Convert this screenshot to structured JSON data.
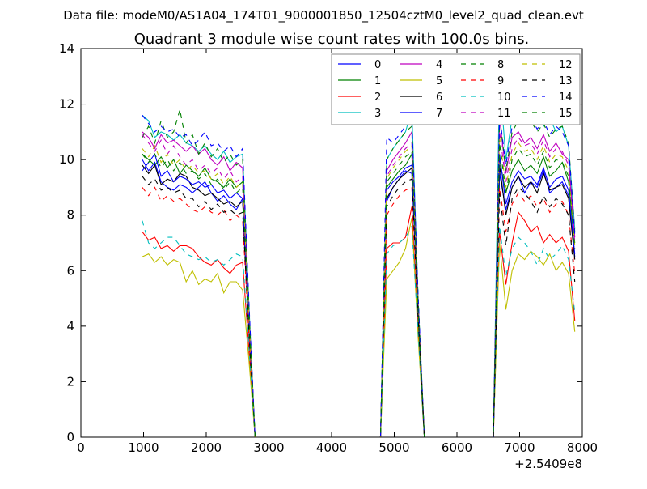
{
  "suptitle": "Data file: modeM0/AS1A04_174T01_9000001850_12504cztM0_level2_quad_clean.evt",
  "chart_data": {
    "type": "line",
    "title": "Quadrant 3 module wise count rates with 100.0s bins.",
    "xlabel": "",
    "ylabel": "",
    "x_offset_label": "+2.5409e8",
    "xlim": [
      0,
      8000
    ],
    "ylim": [
      0,
      14
    ],
    "x_ticks": [
      0,
      1000,
      2000,
      3000,
      4000,
      5000,
      6000,
      7000,
      8000
    ],
    "y_ticks": [
      0,
      2,
      4,
      6,
      8,
      10,
      12,
      14
    ],
    "grid": false,
    "legend": "top-right",
    "x": [
      980,
      1080,
      1180,
      1280,
      1380,
      1480,
      1580,
      1680,
      1780,
      1880,
      1980,
      2080,
      2180,
      2280,
      2380,
      2480,
      2580,
      2680,
      2780,
      2880,
      2980,
      3080,
      3180,
      3280,
      3380,
      3480,
      3580,
      3680,
      3780,
      3880,
      3980,
      4080,
      4180,
      4280,
      4380,
      4480,
      4580,
      4680,
      4780,
      4880,
      4980,
      5080,
      5180,
      5280,
      5380,
      5480,
      5580,
      5680,
      5780,
      5880,
      5980,
      6080,
      6180,
      6280,
      6380,
      6480,
      6580,
      6680,
      6780,
      6880,
      6980,
      7080,
      7180,
      7280,
      7380,
      7480,
      7580,
      7680,
      7780,
      7880
    ],
    "series": [
      {
        "name": "0",
        "color": "#0000ff",
        "dash": "solid",
        "values": [
          10.0,
          9.6,
          9.9,
          9.2,
          9.0,
          8.9,
          9.1,
          9.0,
          8.8,
          9.0,
          9.2,
          8.8,
          8.5,
          8.7,
          8.4,
          8.2,
          8.6,
          4.0,
          0,
          0,
          0,
          0,
          0,
          0,
          0,
          0,
          0,
          0,
          0,
          0,
          0,
          0,
          0,
          0,
          0,
          0,
          0,
          0,
          0,
          8.5,
          9.0,
          9.3,
          9.6,
          9.5,
          4.5,
          0,
          0,
          0,
          0,
          0,
          0,
          0,
          0,
          0,
          0,
          0,
          0,
          9.5,
          8.2,
          9.0,
          9.4,
          8.8,
          9.2,
          9.0,
          9.6,
          8.8,
          9.0,
          9.2,
          8.7,
          6.5
        ]
      },
      {
        "name": "1",
        "color": "#008000",
        "dash": "solid",
        "values": [
          10.2,
          10.0,
          9.8,
          10.1,
          9.7,
          10.0,
          9.5,
          9.8,
          9.6,
          9.4,
          9.7,
          9.3,
          9.2,
          9.0,
          9.3,
          9.0,
          9.2,
          4.2,
          0,
          0,
          0,
          0,
          0,
          0,
          0,
          0,
          0,
          0,
          0,
          0,
          0,
          0,
          0,
          0,
          0,
          0,
          0,
          0,
          0,
          9.0,
          9.3,
          9.6,
          9.8,
          10.2,
          4.8,
          0,
          0,
          0,
          0,
          0,
          0,
          0,
          0,
          0,
          0,
          0,
          0,
          10.0,
          8.8,
          9.6,
          10.0,
          9.6,
          9.8,
          9.5,
          10.1,
          9.4,
          9.6,
          9.9,
          9.2,
          7.0
        ]
      },
      {
        "name": "2",
        "color": "#ff0000",
        "dash": "solid",
        "values": [
          7.4,
          7.1,
          7.2,
          6.8,
          6.9,
          6.7,
          6.9,
          6.9,
          6.8,
          6.5,
          6.3,
          6.2,
          6.4,
          6.1,
          5.9,
          6.2,
          6.3,
          3.2,
          0,
          0,
          0,
          0,
          0,
          0,
          0,
          0,
          0,
          0,
          0,
          0,
          0,
          0,
          0,
          0,
          0,
          0,
          0,
          0,
          0,
          6.8,
          7.0,
          7.0,
          7.2,
          8.3,
          3.8,
          0,
          0,
          0,
          0,
          0,
          0,
          0,
          0,
          0,
          0,
          0,
          0,
          7.4,
          5.5,
          7.0,
          8.1,
          7.8,
          7.4,
          7.6,
          7.0,
          7.3,
          7.0,
          7.2,
          6.7,
          4.2
        ]
      },
      {
        "name": "3",
        "color": "#00bfbf",
        "dash": "solid",
        "values": [
          11.6,
          11.4,
          10.8,
          11.0,
          10.9,
          10.7,
          10.9,
          10.6,
          10.5,
          10.3,
          10.5,
          10.2,
          10.0,
          10.3,
          9.9,
          10.1,
          10.2,
          4.8,
          0,
          0,
          0,
          0,
          0,
          0,
          0,
          0,
          0,
          0,
          0,
          0,
          0,
          0,
          0,
          0,
          0,
          0,
          0,
          0,
          0,
          10.0,
          10.4,
          10.7,
          11.0,
          11.8,
          5.0,
          0,
          0,
          0,
          0,
          0,
          0,
          0,
          0,
          0,
          0,
          0,
          0,
          13.0,
          10.0,
          11.5,
          12.0,
          11.6,
          11.4,
          11.8,
          11.2,
          11.5,
          11.0,
          11.2,
          10.5,
          7.5
        ]
      },
      {
        "name": "4",
        "color": "#bf00bf",
        "dash": "solid",
        "values": [
          11.0,
          10.8,
          10.4,
          10.9,
          10.6,
          10.7,
          10.5,
          10.3,
          10.5,
          10.2,
          10.4,
          10.0,
          9.8,
          10.1,
          9.6,
          9.9,
          9.7,
          4.6,
          0,
          0,
          0,
          0,
          0,
          0,
          0,
          0,
          0,
          0,
          0,
          0,
          0,
          0,
          0,
          0,
          0,
          0,
          0,
          0,
          0,
          9.6,
          10.0,
          10.3,
          10.6,
          11.0,
          4.9,
          0,
          0,
          0,
          0,
          0,
          0,
          0,
          0,
          0,
          0,
          0,
          0,
          11.5,
          9.5,
          10.8,
          11.0,
          10.6,
          10.8,
          10.4,
          10.9,
          10.3,
          10.6,
          10.2,
          10.0,
          7.2
        ]
      },
      {
        "name": "5",
        "color": "#bfbf00",
        "dash": "solid",
        "values": [
          6.5,
          6.6,
          6.3,
          6.5,
          6.2,
          6.4,
          6.3,
          5.6,
          6.0,
          5.5,
          5.7,
          5.6,
          5.9,
          5.2,
          5.6,
          5.6,
          5.3,
          2.8,
          0,
          0,
          0,
          0,
          0,
          0,
          0,
          0,
          0,
          0,
          0,
          0,
          0,
          0,
          0,
          0,
          0,
          0,
          0,
          0,
          0,
          5.7,
          6.0,
          6.3,
          6.8,
          7.9,
          3.6,
          0,
          0,
          0,
          0,
          0,
          0,
          0,
          0,
          0,
          0,
          0,
          0,
          7.0,
          4.6,
          6.0,
          6.6,
          6.4,
          6.7,
          6.5,
          6.2,
          6.6,
          6.0,
          6.3,
          5.9,
          3.8
        ]
      },
      {
        "name": "6",
        "color": "#000000",
        "dash": "solid",
        "values": [
          9.8,
          9.5,
          9.8,
          9.1,
          9.3,
          9.2,
          9.5,
          9.4,
          9.0,
          8.9,
          8.7,
          8.8,
          8.6,
          8.4,
          8.5,
          8.3,
          8.5,
          3.9,
          0,
          0,
          0,
          0,
          0,
          0,
          0,
          0,
          0,
          0,
          0,
          0,
          0,
          0,
          0,
          0,
          0,
          0,
          0,
          0,
          0,
          8.6,
          9.0,
          9.3,
          9.5,
          9.7,
          4.4,
          0,
          0,
          0,
          0,
          0,
          0,
          0,
          0,
          0,
          0,
          0,
          0,
          9.8,
          8.0,
          9.0,
          9.4,
          9.0,
          9.2,
          8.8,
          9.5,
          8.9,
          9.0,
          9.1,
          8.6,
          6.4
        ]
      },
      {
        "name": "7",
        "color": "#0000ff",
        "dash": "solid",
        "values": [
          9.6,
          9.9,
          10.2,
          9.4,
          9.6,
          9.2,
          9.4,
          9.3,
          9.1,
          9.2,
          9.0,
          9.1,
          8.8,
          8.9,
          8.6,
          8.8,
          8.6,
          4.0,
          0,
          0,
          0,
          0,
          0,
          0,
          0,
          0,
          0,
          0,
          0,
          0,
          0,
          0,
          0,
          0,
          0,
          0,
          0,
          0,
          0,
          8.9,
          9.2,
          9.4,
          9.7,
          9.8,
          4.5,
          0,
          0,
          0,
          0,
          0,
          0,
          0,
          0,
          0,
          0,
          0,
          0,
          10.2,
          8.4,
          9.2,
          9.6,
          9.3,
          9.4,
          9.1,
          9.7,
          9.0,
          9.3,
          9.4,
          8.9,
          6.6
        ]
      },
      {
        "name": "8",
        "color": "#008000",
        "dash": "dashed",
        "values": [
          10.8,
          11.2,
          10.6,
          11.4,
          10.8,
          11.0,
          11.8,
          10.6,
          10.9,
          10.2,
          10.6,
          10.1,
          10.4,
          9.9,
          10.2,
          9.8,
          10.0,
          4.7,
          0,
          0,
          0,
          0,
          0,
          0,
          0,
          0,
          0,
          0,
          0,
          0,
          0,
          0,
          0,
          0,
          0,
          0,
          0,
          0,
          0,
          10.0,
          10.4,
          10.7,
          11.0,
          11.2,
          5.0,
          0,
          0,
          0,
          0,
          0,
          0,
          0,
          0,
          0,
          0,
          0,
          0,
          11.6,
          9.6,
          11.0,
          11.4,
          11.2,
          11.4,
          11.0,
          11.3,
          10.8,
          11.1,
          11.2,
          10.6,
          7.4
        ]
      },
      {
        "name": "9",
        "color": "#ff0000",
        "dash": "dashed",
        "values": [
          9.0,
          8.7,
          9.0,
          8.5,
          8.7,
          8.5,
          8.6,
          8.4,
          8.2,
          8.1,
          8.3,
          8.1,
          8.0,
          8.2,
          7.8,
          8.0,
          7.8,
          3.7,
          0,
          0,
          0,
          0,
          0,
          0,
          0,
          0,
          0,
          0,
          0,
          0,
          0,
          0,
          0,
          0,
          0,
          0,
          0,
          0,
          0,
          8.0,
          8.4,
          8.7,
          8.9,
          9.0,
          4.2,
          0,
          0,
          0,
          0,
          0,
          0,
          0,
          0,
          0,
          0,
          0,
          0,
          9.0,
          7.4,
          8.4,
          8.8,
          8.5,
          8.7,
          8.3,
          8.6,
          8.1,
          8.4,
          8.5,
          8.0,
          5.9
        ]
      },
      {
        "name": "10",
        "color": "#00bfbf",
        "dash": "dashed",
        "values": [
          7.8,
          7.0,
          6.8,
          7.0,
          7.2,
          7.2,
          6.9,
          6.6,
          6.5,
          6.4,
          6.5,
          6.3,
          6.4,
          6.2,
          6.4,
          6.6,
          6.5,
          3.3,
          0,
          0,
          0,
          0,
          0,
          0,
          0,
          0,
          0,
          0,
          0,
          0,
          0,
          0,
          0,
          0,
          0,
          0,
          0,
          0,
          0,
          6.6,
          6.9,
          7.0,
          7.2,
          7.6,
          3.8,
          0,
          0,
          0,
          0,
          0,
          0,
          0,
          0,
          0,
          0,
          0,
          0,
          7.6,
          5.8,
          6.8,
          7.2,
          7.0,
          6.7,
          6.2,
          6.8,
          6.4,
          6.6,
          6.9,
          6.4,
          4.5
        ]
      },
      {
        "name": "11",
        "color": "#bf00bf",
        "dash": "dashed",
        "values": [
          10.9,
          10.6,
          10.3,
          10.7,
          10.2,
          10.5,
          10.1,
          9.8,
          10.0,
          9.6,
          9.8,
          9.5,
          9.7,
          9.3,
          9.6,
          9.2,
          9.4,
          4.5,
          0,
          0,
          0,
          0,
          0,
          0,
          0,
          0,
          0,
          0,
          0,
          0,
          0,
          0,
          0,
          0,
          0,
          0,
          0,
          0,
          0,
          9.4,
          9.8,
          10.1,
          10.4,
          10.6,
          4.8,
          0,
          0,
          0,
          0,
          0,
          0,
          0,
          0,
          0,
          0,
          0,
          0,
          11.0,
          9.2,
          10.4,
          10.8,
          10.5,
          10.6,
          10.2,
          10.7,
          10.1,
          10.4,
          10.3,
          9.8,
          7.0
        ]
      },
      {
        "name": "12",
        "color": "#bfbf00",
        "dash": "dashed",
        "values": [
          10.4,
          10.1,
          10.5,
          9.9,
          10.2,
          9.8,
          10.0,
          9.6,
          9.8,
          9.5,
          9.6,
          9.3,
          9.5,
          9.1,
          9.4,
          9.0,
          9.2,
          4.4,
          0,
          0,
          0,
          0,
          0,
          0,
          0,
          0,
          0,
          0,
          0,
          0,
          0,
          0,
          0,
          0,
          0,
          0,
          0,
          0,
          0,
          9.3,
          9.7,
          10.0,
          10.3,
          10.5,
          4.7,
          0,
          0,
          0,
          0,
          0,
          0,
          0,
          0,
          0,
          0,
          0,
          0,
          10.8,
          9.0,
          10.2,
          10.6,
          10.3,
          10.4,
          10.0,
          10.5,
          9.9,
          10.2,
          10.1,
          9.6,
          6.9
        ]
      },
      {
        "name": "13",
        "color": "#000000",
        "dash": "dashed",
        "values": [
          9.4,
          9.1,
          9.3,
          8.9,
          9.0,
          8.8,
          8.9,
          8.6,
          8.6,
          8.3,
          8.5,
          8.2,
          8.4,
          8.1,
          8.2,
          8.0,
          8.1,
          3.8,
          0,
          0,
          0,
          0,
          0,
          0,
          0,
          0,
          0,
          0,
          0,
          0,
          0,
          0,
          0,
          0,
          0,
          0,
          0,
          0,
          0,
          8.3,
          8.7,
          9.0,
          9.2,
          9.3,
          4.3,
          0,
          0,
          0,
          0,
          0,
          0,
          0,
          0,
          0,
          0,
          0,
          0,
          8.8,
          6.9,
          8.6,
          9.0,
          8.8,
          8.5,
          8.1,
          8.7,
          8.3,
          8.6,
          8.4,
          8.0,
          5.6
        ]
      },
      {
        "name": "14",
        "color": "#0000ff",
        "dash": "dashed",
        "values": [
          11.6,
          11.3,
          11.0,
          11.2,
          11.0,
          11.1,
          10.8,
          10.9,
          10.5,
          10.7,
          11.0,
          10.5,
          10.6,
          10.3,
          10.5,
          10.1,
          10.4,
          4.9,
          0,
          0,
          0,
          0,
          0,
          0,
          0,
          0,
          0,
          0,
          0,
          0,
          0,
          0,
          0,
          0,
          0,
          0,
          0,
          0,
          0,
          10.8,
          10.6,
          10.9,
          11.2,
          11.4,
          5.1,
          0,
          0,
          0,
          0,
          0,
          0,
          0,
          0,
          0,
          0,
          0,
          0,
          11.6,
          9.8,
          11.2,
          11.6,
          11.3,
          11.5,
          11.1,
          11.4,
          10.9,
          11.2,
          11.0,
          10.5,
          7.3
        ]
      },
      {
        "name": "15",
        "color": "#008000",
        "dash": "dashed",
        "values": [
          10.2,
          9.9,
          10.2,
          9.7,
          10.0,
          9.6,
          9.9,
          9.5,
          9.6,
          9.3,
          9.5,
          9.1,
          9.3,
          8.9,
          9.2,
          8.8,
          9.0,
          4.3,
          0,
          0,
          0,
          0,
          0,
          0,
          0,
          0,
          0,
          0,
          0,
          0,
          0,
          0,
          0,
          0,
          0,
          0,
          0,
          0,
          0,
          9.2,
          9.5,
          9.8,
          10.1,
          10.3,
          4.6,
          0,
          0,
          0,
          0,
          0,
          0,
          0,
          0,
          0,
          0,
          0,
          0,
          10.6,
          8.8,
          10.0,
          10.4,
          10.1,
          10.2,
          9.8,
          10.3,
          9.7,
          10.0,
          9.9,
          9.4,
          6.8
        ]
      }
    ]
  }
}
